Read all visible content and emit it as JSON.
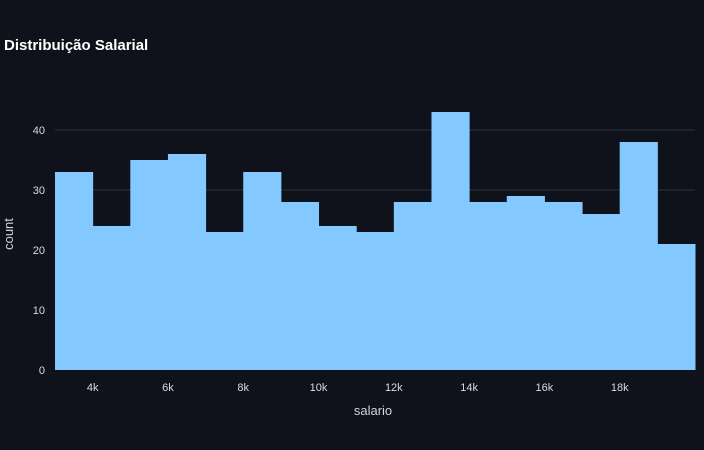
{
  "chart_data": {
    "type": "bar",
    "title": "Distribuição Salarial",
    "xlabel": "salario",
    "ylabel": "count",
    "xlim": [
      3000,
      20000
    ],
    "ylim": [
      0,
      45
    ],
    "bins": [
      {
        "x0": 3000,
        "x1": 4000,
        "value": 33
      },
      {
        "x0": 4000,
        "x1": 5000,
        "value": 24
      },
      {
        "x0": 5000,
        "x1": 6000,
        "value": 35
      },
      {
        "x0": 6000,
        "x1": 7000,
        "value": 36
      },
      {
        "x0": 7000,
        "x1": 8000,
        "value": 23
      },
      {
        "x0": 8000,
        "x1": 9000,
        "value": 33
      },
      {
        "x0": 9000,
        "x1": 10000,
        "value": 28
      },
      {
        "x0": 10000,
        "x1": 11000,
        "value": 24
      },
      {
        "x0": 11000,
        "x1": 12000,
        "value": 23
      },
      {
        "x0": 12000,
        "x1": 13000,
        "value": 28
      },
      {
        "x0": 13000,
        "x1": 14000,
        "value": 43
      },
      {
        "x0": 14000,
        "x1": 15000,
        "value": 28
      },
      {
        "x0": 15000,
        "x1": 16000,
        "value": 29
      },
      {
        "x0": 16000,
        "x1": 17000,
        "value": 28
      },
      {
        "x0": 17000,
        "x1": 18000,
        "value": 26
      },
      {
        "x0": 18000,
        "x1": 19000,
        "value": 38
      },
      {
        "x0": 19000,
        "x1": 20000,
        "value": 21
      }
    ],
    "x_ticks": [
      {
        "value": 4000,
        "label": "4k"
      },
      {
        "value": 6000,
        "label": "6k"
      },
      {
        "value": 8000,
        "label": "8k"
      },
      {
        "value": 10000,
        "label": "10k"
      },
      {
        "value": 12000,
        "label": "12k"
      },
      {
        "value": 14000,
        "label": "14k"
      },
      {
        "value": 16000,
        "label": "16k"
      },
      {
        "value": 18000,
        "label": "18k"
      }
    ],
    "y_ticks": [
      0,
      10,
      20,
      30,
      40
    ],
    "grid": true,
    "colors": {
      "background": "#0f121a",
      "bar": "#83c9ff",
      "grid": "#2b303b",
      "text": "#d7dbe2",
      "title": "#ffffff"
    }
  }
}
